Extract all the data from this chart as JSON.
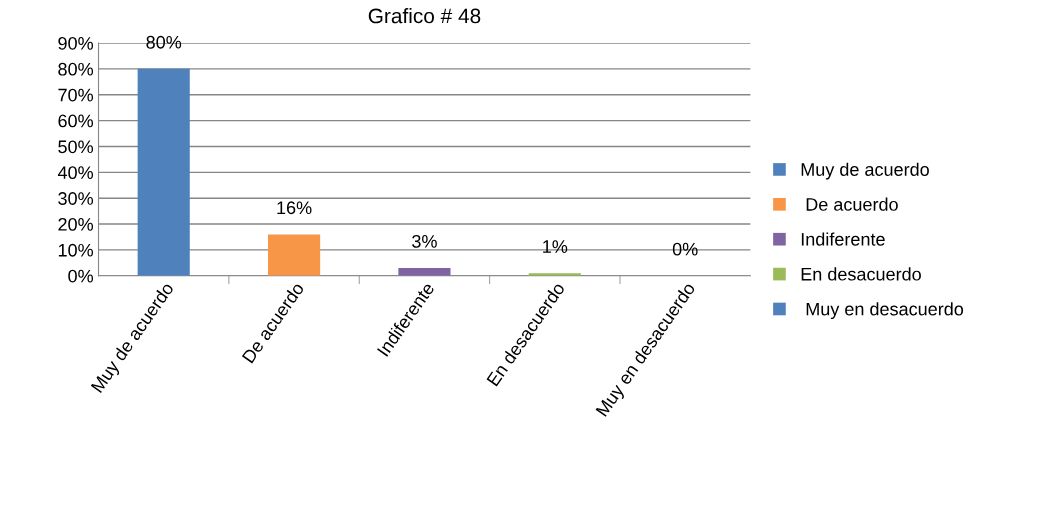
{
  "chart_data": {
    "type": "bar",
    "title": "Grafico # 48",
    "categories": [
      "Muy de acuerdo",
      "De acuerdo",
      "Indiferente",
      "En desacuerdo",
      "Muy en desacuerdo"
    ],
    "series": [
      {
        "name": "Muy de acuerdo",
        "color": "#4f81bd",
        "values": [
          80,
          null,
          null,
          null,
          null
        ],
        "value_labels": [
          "80%",
          null,
          null,
          null,
          null
        ]
      },
      {
        "name": " De acuerdo",
        "color": "#f79646",
        "values": [
          null,
          16,
          null,
          null,
          null
        ],
        "value_labels": [
          null,
          "16%",
          null,
          null,
          null
        ]
      },
      {
        "name": "Indiferente",
        "color": "#8064a2",
        "values": [
          null,
          null,
          3,
          null,
          null
        ],
        "value_labels": [
          null,
          null,
          "3%",
          null,
          null
        ]
      },
      {
        "name": "En desacuerdo",
        "color": "#9bbb59",
        "values": [
          null,
          null,
          null,
          1,
          null
        ],
        "value_labels": [
          null,
          null,
          null,
          "1%",
          null
        ]
      },
      {
        "name": " Muy en desacuerdo",
        "color": "#4f81bd",
        "values": [
          null,
          null,
          null,
          null,
          0
        ],
        "value_labels": [
          null,
          null,
          null,
          null,
          "0%"
        ]
      }
    ],
    "ylim": [
      0,
      90
    ],
    "yticks": [
      {
        "value": 0,
        "label": "0%"
      },
      {
        "value": 10,
        "label": "10%"
      },
      {
        "value": 20,
        "label": "20%"
      },
      {
        "value": 30,
        "label": "30%"
      },
      {
        "value": 40,
        "label": "40%"
      },
      {
        "value": 50,
        "label": "50%"
      },
      {
        "value": 60,
        "label": "60%"
      },
      {
        "value": 70,
        "label": "70%"
      },
      {
        "value": 80,
        "label": "80%"
      },
      {
        "value": 90,
        "label": "90%"
      }
    ],
    "grid": "y",
    "legend": "right"
  }
}
